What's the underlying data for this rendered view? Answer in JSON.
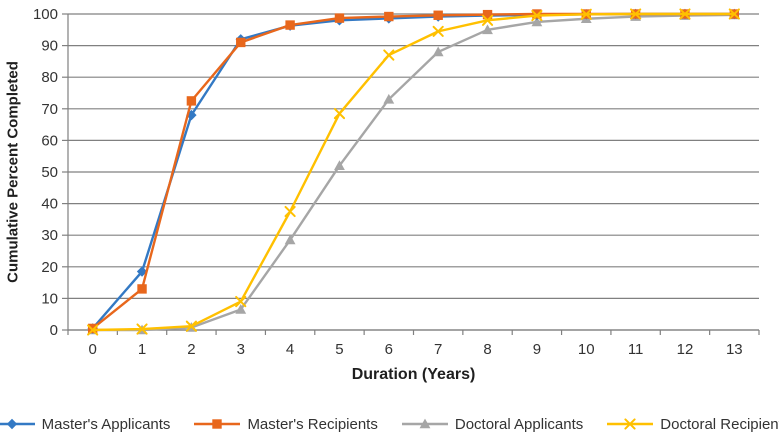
{
  "chart_data": {
    "type": "line",
    "xlabel": "Duration (Years)",
    "ylabel": "Cumulative Percent Completed",
    "x": [
      0,
      1,
      2,
      3,
      4,
      5,
      6,
      7,
      8,
      9,
      10,
      11,
      12,
      13
    ],
    "y_ticks": [
      0,
      10,
      20,
      30,
      40,
      50,
      60,
      70,
      80,
      90,
      100
    ],
    "ylim": [
      0,
      100
    ],
    "grid": "horizontal",
    "legend_position": "bottom",
    "axis_color": "#808080",
    "series": [
      {
        "name": "Master's Applicants",
        "color": "#3379C4",
        "marker": "diamond",
        "values": [
          0.5,
          18.5,
          68,
          92,
          96.3,
          98,
          98.6,
          99.2,
          99.5,
          99.7,
          99.9,
          100,
          100,
          100
        ]
      },
      {
        "name": "Master's Recipients",
        "color": "#E8671C",
        "marker": "square",
        "values": [
          0.5,
          13,
          72.5,
          91,
          96.5,
          98.7,
          99.2,
          99.6,
          99.8,
          100,
          100,
          100,
          100,
          100
        ]
      },
      {
        "name": "Doctoral Applicants",
        "color": "#A6A6A6",
        "marker": "triangle",
        "values": [
          0,
          0,
          0.8,
          6.5,
          28.5,
          52,
          73,
          88,
          95,
          97.5,
          98.5,
          99.2,
          99.5,
          99.7
        ]
      },
      {
        "name": "Doctoral Recipients",
        "color": "#FFC000",
        "marker": "x",
        "values": [
          0,
          0.3,
          1.2,
          9,
          37.5,
          68.5,
          87,
          94.5,
          98,
          99.5,
          99.9,
          100,
          100,
          100
        ]
      }
    ],
    "draw_order": [
      2,
      0,
      1,
      3
    ]
  }
}
